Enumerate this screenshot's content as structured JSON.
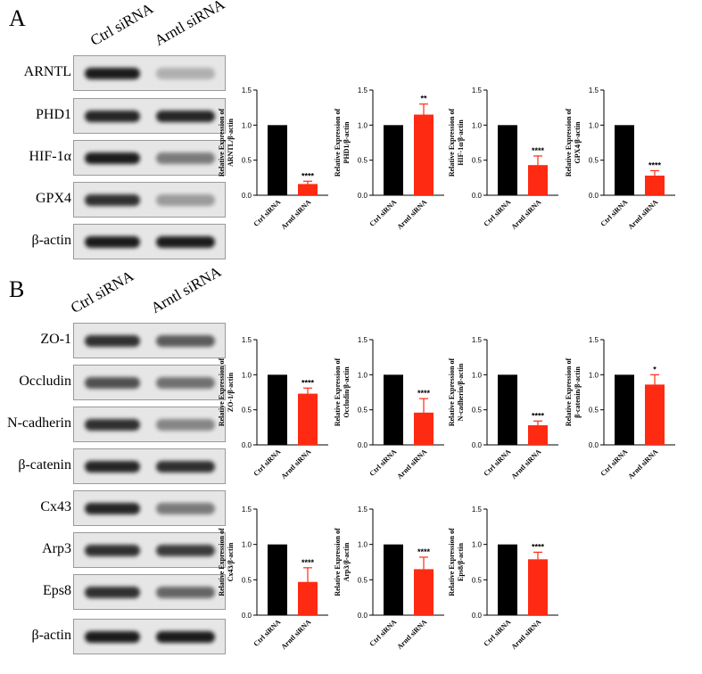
{
  "panels": [
    {
      "label": "A",
      "lanes": [
        "Ctrl siRNA",
        "Arntl siRNA"
      ],
      "blots": [
        {
          "protein": "ARNTL",
          "bands": [
            0.95,
            0.25
          ]
        },
        {
          "protein": "PHD1",
          "bands": [
            0.9,
            0.9
          ]
        },
        {
          "protein": "HIF-1α",
          "bands": [
            0.95,
            0.5
          ]
        },
        {
          "protein": "GPX4",
          "bands": [
            0.85,
            0.35
          ]
        },
        {
          "protein": "β-actin",
          "bands": [
            0.95,
            0.95
          ]
        }
      ]
    },
    {
      "label": "B",
      "lanes": [
        "Ctrl siRNA",
        "Arntl siRNA"
      ],
      "blots": [
        {
          "protein": "ZO-1",
          "bands": [
            0.85,
            0.65
          ]
        },
        {
          "protein": "Occludin",
          "bands": [
            0.7,
            0.55
          ]
        },
        {
          "protein": "N-cadherin",
          "bands": [
            0.85,
            0.45
          ]
        },
        {
          "protein": "β-catenin",
          "bands": [
            0.9,
            0.85
          ]
        },
        {
          "protein": "Cx43",
          "bands": [
            0.9,
            0.5
          ]
        },
        {
          "protein": "Arp3",
          "bands": [
            0.85,
            0.8
          ]
        },
        {
          "protein": "Eps8",
          "bands": [
            0.85,
            0.6
          ]
        },
        {
          "protein": "β-actin",
          "bands": [
            0.95,
            0.95
          ]
        }
      ]
    }
  ],
  "colors": {
    "ctrl": "#000000",
    "arntl": "#ff2a12"
  },
  "chart_data": [
    {
      "type": "bar",
      "categories": [
        "Ctrl siRNA",
        "Arntl siRNA"
      ],
      "values": [
        1.0,
        0.16
      ],
      "errors": [
        0,
        0.04
      ],
      "significance": "****",
      "ylabel": "Relative Expression of ARNTL/β-actin",
      "ylim": [
        0,
        1.5
      ],
      "yticks": [
        "0.0",
        "0.5",
        "1.0",
        "1.5"
      ]
    },
    {
      "type": "bar",
      "categories": [
        "Ctrl siRNA",
        "Arntl siRNA"
      ],
      "values": [
        1.0,
        1.15
      ],
      "errors": [
        0,
        0.15
      ],
      "significance": "**",
      "ylabel": "Relative Expression of PHD1/β-actin",
      "ylim": [
        0,
        1.5
      ],
      "yticks": [
        "0.0",
        "0.5",
        "1.0",
        "1.5"
      ]
    },
    {
      "type": "bar",
      "categories": [
        "Ctrl siRNA",
        "Arntl siRNA"
      ],
      "values": [
        1.0,
        0.43
      ],
      "errors": [
        0,
        0.13
      ],
      "significance": "****",
      "ylabel": "Relative Expression of HIF-1α/β-actin",
      "ylim": [
        0,
        1.5
      ],
      "yticks": [
        "0.0",
        "0.5",
        "1.0",
        "1.5"
      ]
    },
    {
      "type": "bar",
      "categories": [
        "Ctrl siRNA",
        "Arntl siRNA"
      ],
      "values": [
        1.0,
        0.28
      ],
      "errors": [
        0,
        0.07
      ],
      "significance": "****",
      "ylabel": "Relative Expression of GPX4/β-actin",
      "ylim": [
        0,
        1.5
      ],
      "yticks": [
        "0.0",
        "0.5",
        "1.0",
        "1.5"
      ]
    },
    {
      "type": "bar",
      "categories": [
        "Ctrl siRNA",
        "Arntl siRNA"
      ],
      "values": [
        1.0,
        0.73
      ],
      "errors": [
        0,
        0.08
      ],
      "significance": "****",
      "ylabel": "Relative Expression of ZO-1/β-actin",
      "ylim": [
        0,
        1.5
      ],
      "yticks": [
        "0.0",
        "0.5",
        "1.0",
        "1.5"
      ]
    },
    {
      "type": "bar",
      "categories": [
        "Ctrl siRNA",
        "Arntl siRNA"
      ],
      "values": [
        1.0,
        0.46
      ],
      "errors": [
        0,
        0.2
      ],
      "significance": "****",
      "ylabel": "Relative Expression of Occludin/β-actin",
      "ylim": [
        0,
        1.5
      ],
      "yticks": [
        "0.0",
        "0.5",
        "1.0",
        "1.5"
      ]
    },
    {
      "type": "bar",
      "categories": [
        "Ctrl siRNA",
        "Arntl siRNA"
      ],
      "values": [
        1.0,
        0.28
      ],
      "errors": [
        0,
        0.06
      ],
      "significance": "****",
      "ylabel": "Relative Expression of N-cadherin/β-actin",
      "ylim": [
        0,
        1.5
      ],
      "yticks": [
        "0.0",
        "0.5",
        "1.0",
        "1.5"
      ]
    },
    {
      "type": "bar",
      "categories": [
        "Ctrl siRNA",
        "Arntl siRNA"
      ],
      "values": [
        1.0,
        0.86
      ],
      "errors": [
        0,
        0.14
      ],
      "significance": "*",
      "ylabel": "Relative Expression of β-catenin/β-actin",
      "ylim": [
        0,
        1.5
      ],
      "yticks": [
        "0.0",
        "0.5",
        "1.0",
        "1.5"
      ]
    },
    {
      "type": "bar",
      "categories": [
        "Ctrl siRNA",
        "Arntl siRNA"
      ],
      "values": [
        1.0,
        0.47
      ],
      "errors": [
        0,
        0.2
      ],
      "significance": "****",
      "ylabel": "Relative Expression of Cx43/β-actin",
      "ylim": [
        0,
        1.5
      ],
      "yticks": [
        "0.0",
        "0.5",
        "1.0",
        "1.5"
      ]
    },
    {
      "type": "bar",
      "categories": [
        "Ctrl siRNA",
        "Arntl siRNA"
      ],
      "values": [
        1.0,
        0.65
      ],
      "errors": [
        0,
        0.17
      ],
      "significance": "****",
      "ylabel": "Relative Expression of Arp3/β-actin",
      "ylim": [
        0,
        1.5
      ],
      "yticks": [
        "0.0",
        "0.5",
        "1.0",
        "1.5"
      ]
    },
    {
      "type": "bar",
      "categories": [
        "Ctrl siRNA",
        "Arntl siRNA"
      ],
      "values": [
        1.0,
        0.79
      ],
      "errors": [
        0,
        0.1
      ],
      "significance": "****",
      "ylabel": "Relative Expression of Eps8/β-actin",
      "ylim": [
        0,
        1.5
      ],
      "yticks": [
        "0.0",
        "0.5",
        "1.0",
        "1.5"
      ]
    }
  ]
}
